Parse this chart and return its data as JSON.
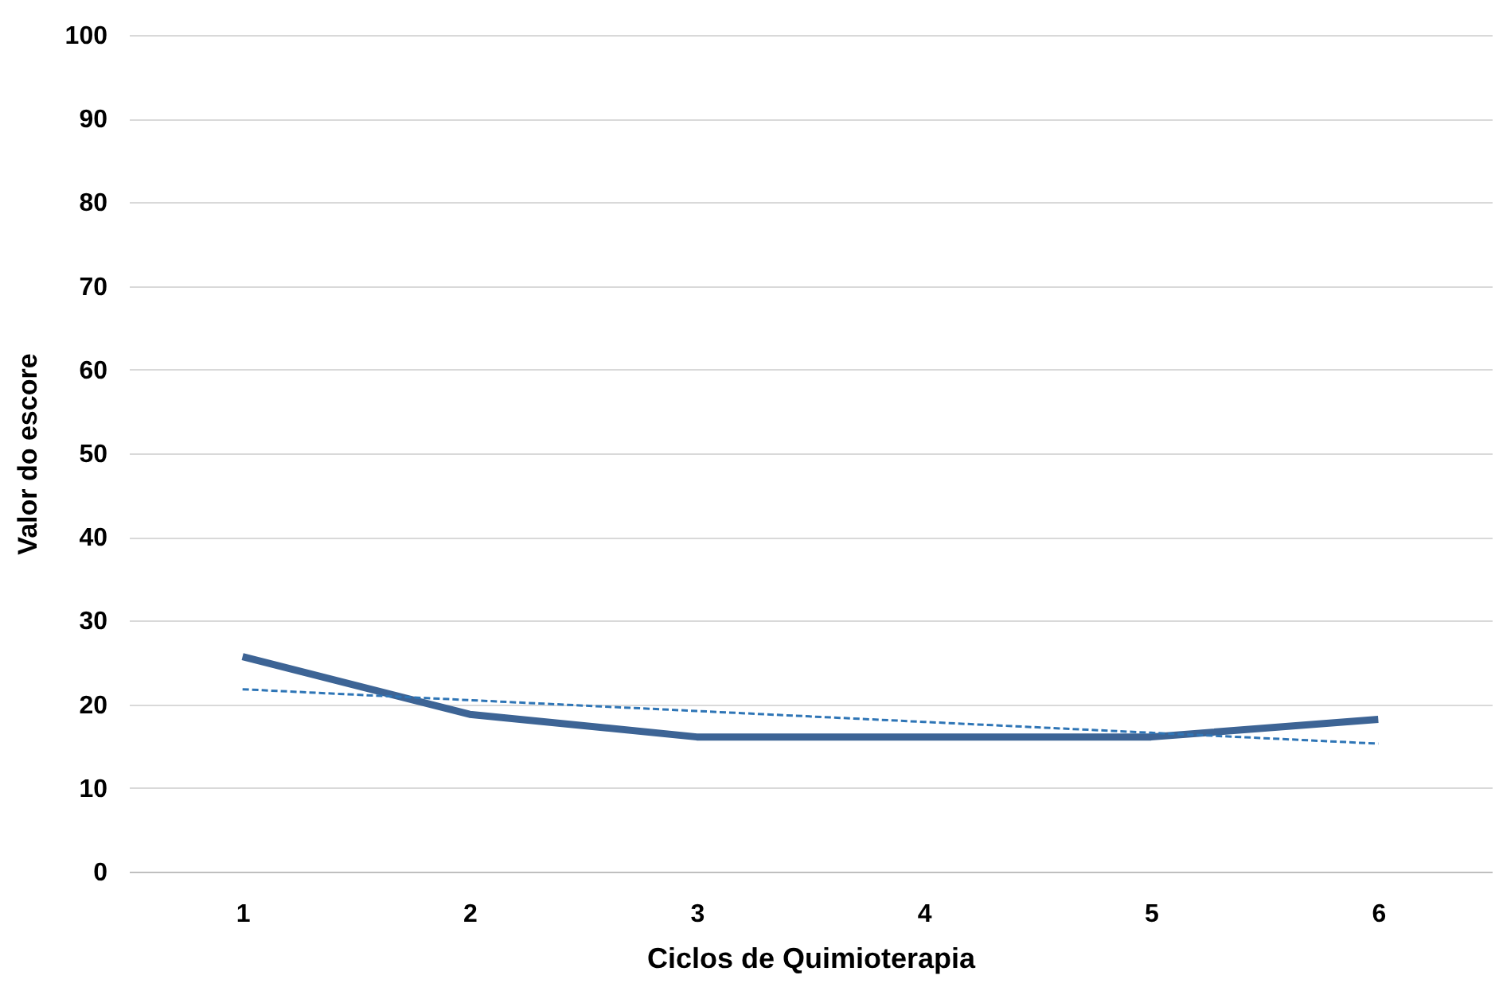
{
  "chart_data": {
    "type": "line",
    "xlabel": "Ciclos de Quimioterapia",
    "ylabel": "Valor do escore",
    "categories": [
      "1",
      "2",
      "3",
      "4",
      "5",
      "6"
    ],
    "series": [
      {
        "color": "#3d6495",
        "values": [
          25.7,
          18.8,
          16.1,
          16.1,
          16.1,
          18.2
        ],
        "line_style": "solid"
      },
      {
        "color": "#2e75b6",
        "values": [
          21.8,
          20.5,
          19.2,
          17.9,
          16.6,
          15.3
        ],
        "line_style": "dashed"
      }
    ],
    "ylim": [
      0,
      100
    ],
    "yticks": [
      0,
      10,
      20,
      30,
      40,
      50,
      60,
      70,
      80,
      90,
      100
    ],
    "grid": "y"
  }
}
